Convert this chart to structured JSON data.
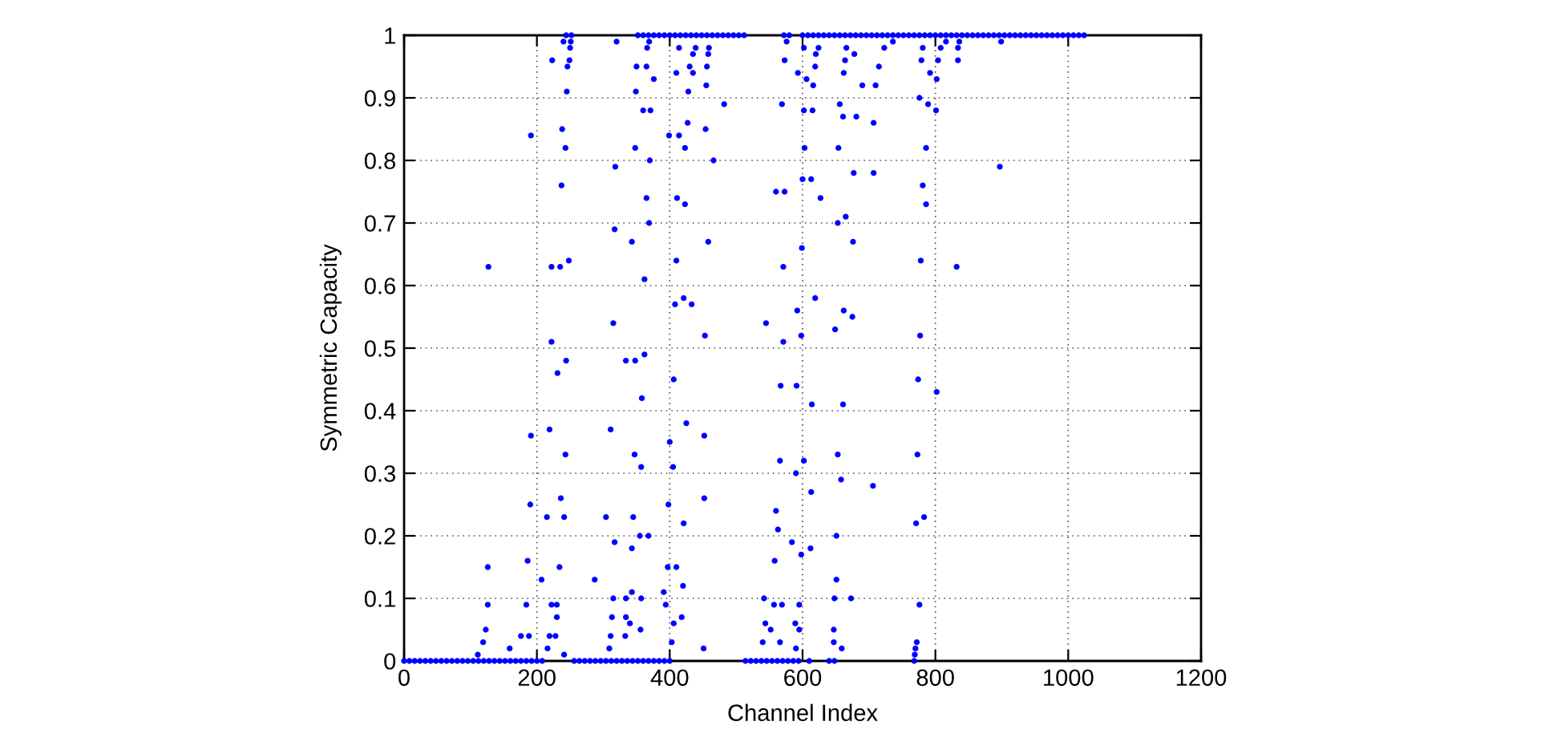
{
  "chart_data": {
    "type": "scatter",
    "xlabel": "Channel Index",
    "ylabel": "Symmetric Capacity",
    "xlim": [
      0,
      1200
    ],
    "xticks": [
      0,
      200,
      400,
      600,
      800,
      1000,
      1200
    ],
    "ylim": [
      0,
      1
    ],
    "yticks": [
      0,
      0.1,
      0.2,
      0.3,
      0.4,
      0.5,
      0.6,
      0.7,
      0.8,
      0.9,
      1
    ],
    "grid": true,
    "marker": "circle",
    "series": [
      {
        "color": "#0000ff",
        "x": [
          0,
          8,
          16,
          24,
          32,
          40,
          48,
          56,
          64,
          72,
          80,
          88,
          96,
          104,
          112,
          120,
          128,
          136,
          144,
          152,
          160,
          168,
          176,
          184,
          192,
          200,
          208,
          111,
          119,
          123,
          126,
          126,
          127,
          159,
          176,
          184,
          186,
          188,
          190,
          191,
          191,
          207,
          215,
          216,
          219,
          219,
          222,
          222,
          222,
          223,
          228,
          230,
          230,
          231,
          234,
          235,
          236,
          237,
          238,
          240,
          241,
          241,
          243,
          243,
          244,
          244,
          245,
          246,
          248,
          249,
          250,
          251,
          252,
          256,
          264,
          272,
          280,
          288,
          296,
          304,
          312,
          320,
          328,
          336,
          344,
          352,
          287,
          304,
          309,
          311,
          311,
          313,
          315,
          315,
          317,
          317,
          318,
          320,
          333,
          334,
          334,
          334,
          340,
          343,
          343,
          343,
          345,
          347,
          348,
          348,
          349,
          350,
          355,
          356,
          357,
          357,
          358,
          360,
          362,
          362,
          365,
          365,
          366,
          368,
          369,
          369,
          370,
          371,
          376,
          391,
          352,
          360,
          368,
          376,
          384,
          392,
          400,
          408,
          416,
          424,
          432,
          440,
          448,
          456,
          464,
          472,
          480,
          488,
          496,
          504,
          512,
          360,
          368,
          376,
          384,
          392,
          400,
          394,
          397,
          398,
          399,
          400,
          403,
          405,
          406,
          406,
          408,
          410,
          410,
          410,
          411,
          414,
          414,
          418,
          420,
          421,
          421,
          423,
          423,
          425,
          427,
          428,
          430,
          433,
          435,
          435,
          439,
          451,
          452,
          452,
          453,
          454,
          455,
          456,
          458,
          458,
          459,
          466,
          482,
          514,
          522,
          530,
          538,
          546,
          554,
          562,
          570,
          578,
          586,
          594,
          540,
          542,
          544,
          545,
          552,
          557,
          558,
          560,
          560,
          563,
          566,
          566,
          567,
          569,
          569,
          571,
          571,
          573,
          573,
          576,
          572,
          580,
          584,
          589,
          590,
          590,
          591,
          592,
          593,
          595,
          595,
          598,
          598,
          599,
          600,
          602,
          602,
          602,
          603,
          606,
          600,
          608,
          616,
          624,
          632,
          640,
          648,
          656,
          664,
          672,
          680,
          688,
          696,
          704,
          712,
          720,
          728,
          736,
          744,
          752,
          760,
          768,
          776,
          784,
          792,
          800,
          808,
          816,
          824,
          832,
          840,
          848,
          856,
          864,
          872,
          880,
          888,
          896,
          904,
          912,
          920,
          928,
          936,
          944,
          952,
          960,
          968,
          976,
          984,
          992,
          1000,
          1008,
          1016,
          1024,
          610,
          612,
          613,
          613,
          614,
          615,
          616,
          619,
          619,
          620,
          624,
          627,
          640,
          648,
          647,
          647,
          648,
          649,
          651,
          651,
          653,
          653,
          654,
          656,
          658,
          659,
          661,
          661,
          662,
          662,
          664,
          665,
          666,
          673,
          675,
          676,
          677,
          678,
          681,
          690,
          706,
          707,
          707,
          710,
          715,
          723,
          736,
          768,
          769,
          770,
          771,
          772,
          773,
          774,
          776,
          776,
          777,
          778,
          779,
          781,
          781,
          783,
          786,
          786,
          789,
          792,
          801,
          802,
          802,
          804,
          808,
          816,
          832,
          834,
          834,
          836,
          897,
          899
        ],
        "values": [
          0,
          0,
          0,
          0,
          0,
          0,
          0,
          0,
          0,
          0,
          0,
          0,
          0,
          0,
          0,
          0,
          0,
          0,
          0,
          0,
          0,
          0,
          0,
          0,
          0,
          0,
          0,
          0.01,
          0.03,
          0.05,
          0.09,
          0.15,
          0.63,
          0.02,
          0.04,
          0.09,
          0.16,
          0.04,
          0.25,
          0.36,
          0.84,
          0.13,
          0.23,
          0.02,
          0.04,
          0.37,
          0.09,
          0.51,
          0.63,
          0.96,
          0.04,
          0.07,
          0.09,
          0.46,
          0.15,
          0.63,
          0.26,
          0.76,
          0.85,
          0.99,
          0.01,
          0.23,
          0.33,
          0.82,
          0.48,
          1,
          0.91,
          0.95,
          0.64,
          0.96,
          0.98,
          0.99,
          1,
          0,
          0,
          0,
          0,
          0,
          0,
          0,
          0,
          0,
          0,
          0,
          0,
          0,
          0.13,
          0.23,
          0.02,
          0.04,
          0.37,
          0.07,
          0.1,
          0.54,
          0.19,
          0.69,
          0.79,
          0.99,
          0.04,
          0.07,
          0.1,
          0.48,
          0.06,
          0.11,
          0.18,
          0.67,
          0.23,
          0.33,
          0.48,
          0.82,
          0.91,
          0.95,
          0.2,
          0.05,
          0.1,
          0.31,
          0.42,
          0.88,
          0.49,
          0.61,
          0.74,
          0.95,
          0.98,
          0.2,
          0.7,
          0.99,
          0.8,
          0.88,
          0.93,
          0.11,
          1,
          1,
          1,
          1,
          1,
          1,
          1,
          1,
          1,
          1,
          1,
          1,
          1,
          1,
          1,
          1,
          1,
          1,
          1,
          1,
          1,
          0,
          0,
          0,
          0,
          0,
          0,
          0.09,
          0.15,
          0.25,
          0.84,
          0.35,
          0.03,
          0.31,
          0.06,
          0.45,
          0.57,
          0.15,
          0.64,
          0.94,
          0.74,
          0.98,
          0.84,
          0.07,
          0.12,
          0.22,
          0.58,
          0.73,
          0.82,
          0.38,
          0.86,
          0.91,
          0.95,
          0.57,
          0.94,
          0.97,
          0.98,
          0.02,
          0.26,
          0.36,
          0.52,
          0.85,
          0.92,
          0.95,
          0.67,
          0.97,
          0.98,
          0.8,
          0.89,
          0,
          0,
          0,
          0,
          0,
          0,
          0,
          0,
          0,
          0,
          0,
          0.03,
          0.1,
          0.06,
          0.54,
          0.05,
          0.09,
          0.16,
          0.24,
          0.75,
          0.21,
          0.32,
          0.03,
          0.44,
          0.09,
          0.89,
          0.51,
          0.63,
          0.75,
          0.96,
          0.99,
          1,
          1,
          0.19,
          0.06,
          0.3,
          0.02,
          0.44,
          0.56,
          0.94,
          0.05,
          0.09,
          0.17,
          0.52,
          0.66,
          0.77,
          0.98,
          0.32,
          0.88,
          0.82,
          0.93,
          1,
          1,
          1,
          1,
          1,
          1,
          1,
          1,
          1,
          1,
          1,
          1,
          1,
          1,
          1,
          1,
          1,
          1,
          1,
          1,
          1,
          1,
          1,
          1,
          1,
          1,
          1,
          1,
          1,
          1,
          1,
          1,
          1,
          1,
          1,
          1,
          1,
          1,
          1,
          1,
          1,
          1,
          1,
          1,
          1,
          1,
          1,
          1,
          1,
          1,
          1,
          1,
          1,
          1,
          0,
          0.18,
          0.27,
          0.77,
          0.41,
          0.88,
          0.92,
          0.58,
          0.95,
          0.97,
          0.98,
          0.74,
          0,
          0,
          0.05,
          0.03,
          0.1,
          0.53,
          0.13,
          0.2,
          0.33,
          0.7,
          0.82,
          0.89,
          0.29,
          0.02,
          0.87,
          0.41,
          0.56,
          0.94,
          0.96,
          0.71,
          0.98,
          0.1,
          0.55,
          0.67,
          0.78,
          0.97,
          0.87,
          0.92,
          0.28,
          0.86,
          0.78,
          0.92,
          0.95,
          0.98,
          0.99,
          0,
          0.01,
          0.02,
          0.22,
          0.03,
          0.33,
          0.45,
          0.09,
          0.9,
          0.52,
          0.64,
          0.96,
          0.98,
          0.76,
          0.23,
          0.82,
          0.73,
          0.89,
          0.94,
          0.88,
          0.93,
          0.43,
          0.96,
          0.98,
          0.99,
          0.63,
          0.98,
          0.96,
          0.99,
          0.79,
          0.99
        ]
      }
    ]
  }
}
